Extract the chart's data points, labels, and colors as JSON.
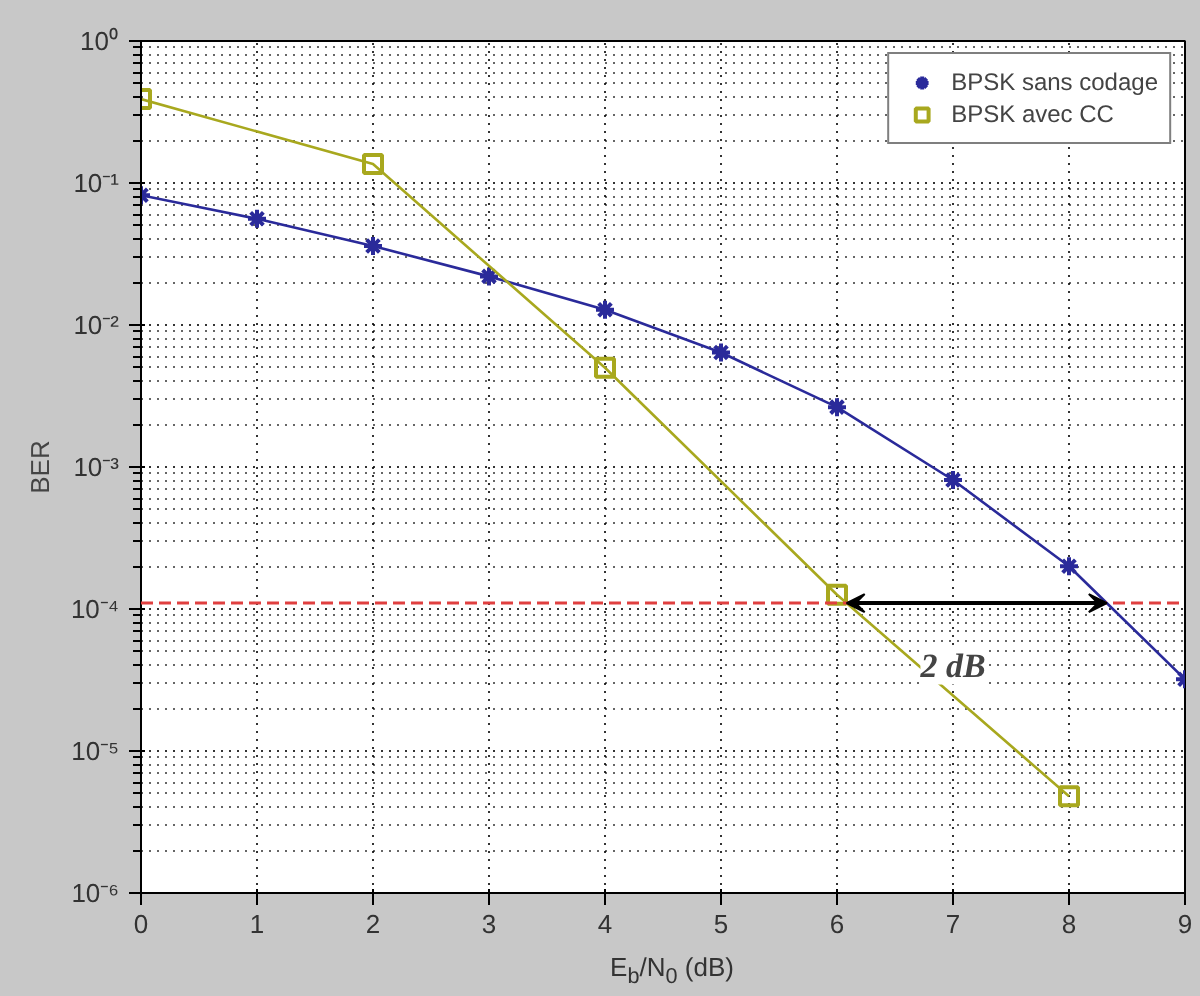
{
  "chart_data": {
    "type": "line",
    "xlabel": "E$_{b}$/N$_{0}$ (dB)",
    "ylabel": "BER",
    "log": "y",
    "grid": true,
    "legend": "top right",
    "xlim": [
      0,
      9
    ],
    "xticks": [
      0,
      1,
      2,
      3,
      4,
      5,
      6,
      7,
      8,
      9
    ],
    "ylim": [
      1e-06,
      1
    ],
    "yticks": [
      {
        "value": 1e-06,
        "label": "10⁻⁶"
      },
      {
        "value": 1e-05,
        "label": "10⁻⁵"
      },
      {
        "value": 0.0001,
        "label": "10⁻⁴"
      },
      {
        "value": 0.001,
        "label": "10⁻³"
      },
      {
        "value": 0.01,
        "label": "10⁻²"
      },
      {
        "value": 0.1,
        "label": "10⁻¹"
      },
      {
        "value": 1,
        "label": "10⁰"
      }
    ],
    "series": [
      {
        "name": "BPSK sans codage",
        "color": "#2a2a9a",
        "marker": "cross",
        "x": [
          0,
          1,
          2,
          3,
          4,
          5,
          6,
          7,
          8,
          9
        ],
        "values": [
          0.082,
          0.056,
          0.036,
          0.022,
          0.0128,
          0.0064,
          0.00264,
          0.00081,
          0.0002,
          3.2e-05
        ]
      },
      {
        "name": "BPSK avec CC",
        "color": "#a8a81e",
        "marker": "square",
        "x": [
          0,
          2,
          4,
          6,
          8
        ],
        "values": [
          0.39,
          0.136,
          0.005,
          0.000126,
          4.8e-06
        ]
      }
    ],
    "ref_lines": [
      {
        "axis": "y",
        "value": 0.00011,
        "color": "#e04040",
        "line_style": "dashed"
      }
    ],
    "annotations": [
      {
        "text": "2 dB",
        "x": 7.0,
        "y": 4e-05
      }
    ]
  }
}
